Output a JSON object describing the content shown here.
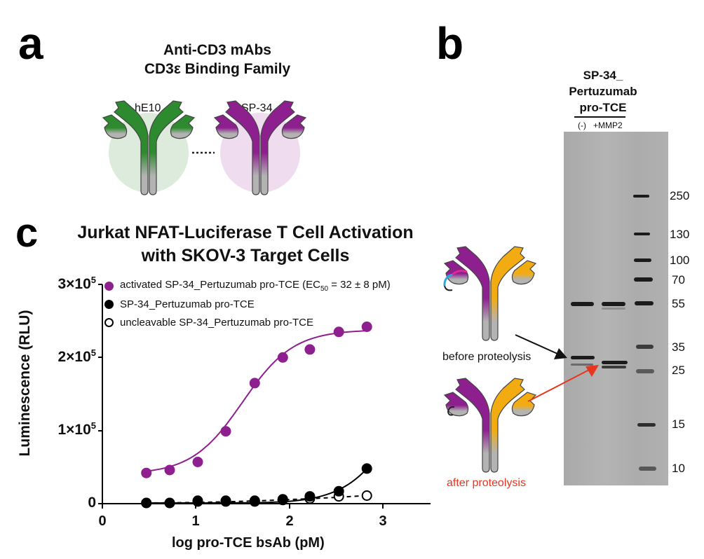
{
  "panel_a": {
    "letter": "a",
    "title_line1": "Anti-CD3 mAbs",
    "title_line2": "CD3ε Binding Family",
    "antibodies": [
      {
        "label": "hE10",
        "arm_color": "#2e8a2e",
        "halo_color": "#dcebdc"
      },
      {
        "label": "SP-34",
        "arm_color": "#8e1f8e",
        "halo_color": "#f0dcef"
      }
    ],
    "connector": "......"
  },
  "panel_b": {
    "letter": "b",
    "header_line1": "SP-34_",
    "header_line2": "Pertuzumab",
    "header_line3": "pro-TCE",
    "lanes": [
      "(-)",
      "+MMP2"
    ],
    "mw_markers": [
      "250",
      "130",
      "100",
      "70",
      "55",
      "35",
      "25",
      "15",
      "10"
    ],
    "before_label": "before proteolysis",
    "after_label": "after proteolysis",
    "arrow_colors": {
      "before": "#111111",
      "after": "#e8351e"
    },
    "antibody_colors": {
      "left_arm": "#8e1f8e",
      "right_arm": "#f2ac12",
      "fc": "#b3b3b3",
      "linker_masked": "#29a8e0",
      "mask": "#e0288f"
    }
  },
  "panel_c": {
    "letter": "c",
    "title_line1": "Jurkat NFAT-Luciferase T Cell Activation",
    "title_line2": "with SKOV-3 Target Cells",
    "legend": [
      {
        "marker": "filled-purple",
        "label": "activated SP-34_Pertuzumab pro-TCE (EC",
        "sub": "50",
        "suffix": " = 32 ± 8 pM)"
      },
      {
        "marker": "filled-black",
        "label": "SP-34_Pertuzumab pro-TCE"
      },
      {
        "marker": "open-black",
        "label": "uncleavable SP-34_Pertuzumab pro-TCE"
      }
    ],
    "y_ticks": [
      {
        "base": "3×10",
        "exp": "5"
      },
      {
        "base": "2×10",
        "exp": "5"
      },
      {
        "base": "1×10",
        "exp": "5"
      },
      {
        "base": "0",
        "exp": ""
      }
    ],
    "x_ticks": [
      "0",
      "1",
      "2",
      "3"
    ]
  },
  "chart_data": {
    "type": "scatter",
    "title": "Jurkat NFAT-Luciferase T Cell Activation with SKOV-3 Target Cells",
    "xlabel": "log pro-TCE bsAb (pM)",
    "ylabel": "Luminescence (RLU)",
    "xlim": [
      0,
      3.5
    ],
    "ylim": [
      0,
      300000
    ],
    "grid": false,
    "legend_position": "top-left inside",
    "x": [
      0.47,
      0.72,
      1.02,
      1.32,
      1.63,
      1.93,
      2.22,
      2.53,
      2.83
    ],
    "series": [
      {
        "name": "activated SP-34_Pertuzumab pro-TCE (EC50 = 32 ± 8 pM)",
        "color": "#8e1f8e",
        "marker": "filled",
        "fit": "sigmoidal solid",
        "values": [
          42000,
          46000,
          57000,
          99000,
          165000,
          200000,
          211000,
          235000,
          242000
        ]
      },
      {
        "name": "SP-34_Pertuzumab pro-TCE",
        "color": "#000000",
        "marker": "filled",
        "fit": "solid",
        "values": [
          1000,
          1000,
          4000,
          4000,
          3000,
          5000,
          10000,
          17000,
          48000
        ]
      },
      {
        "name": "uncleavable SP-34_Pertuzumab pro-TCE",
        "color": "#000000",
        "marker": "open",
        "fit": "dashed",
        "values": [
          1000,
          1000,
          3000,
          3000,
          4000,
          6000,
          7000,
          10000,
          11000
        ]
      }
    ]
  }
}
